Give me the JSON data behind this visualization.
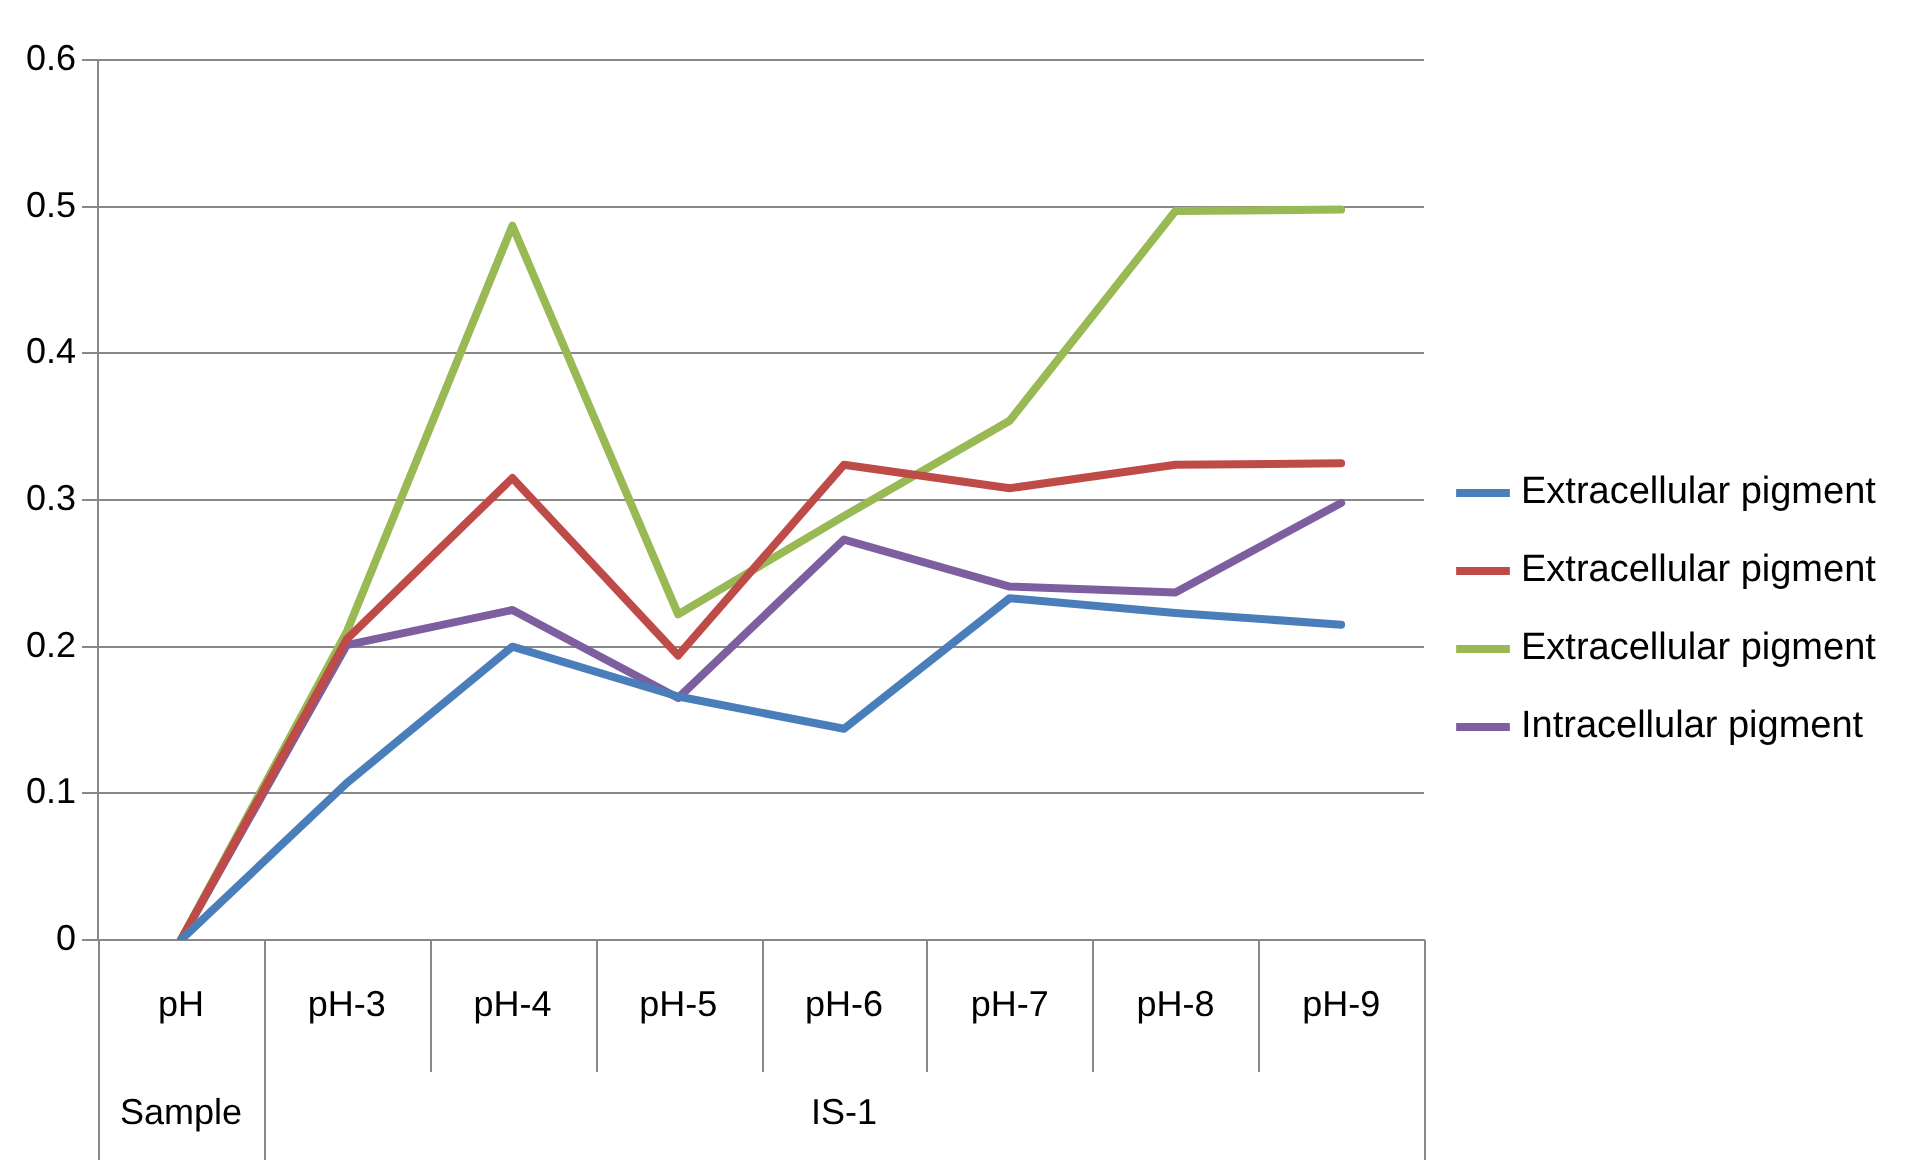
{
  "chart_data": {
    "type": "line",
    "categories": [
      "pH",
      "pH-3",
      "pH-4",
      "pH-5",
      "pH-6",
      "pH-7",
      "pH-8",
      "pH-9"
    ],
    "series": [
      {
        "name": "Extracellular pigment",
        "color": "#4a7ebb",
        "values": [
          0,
          0.107,
          0.2,
          0.166,
          0.144,
          0.233,
          0.223,
          0.215
        ]
      },
      {
        "name": "Extracellular pigment",
        "color": "#be4b48",
        "values": [
          0,
          0.205,
          0.315,
          0.194,
          0.324,
          0.308,
          0.324,
          0.325
        ]
      },
      {
        "name": "Extracellular pigment",
        "color": "#98b954",
        "values": [
          0,
          0.21,
          0.487,
          0.222,
          0.289,
          0.354,
          0.497,
          0.498
        ]
      },
      {
        "name": "Intracellular pigment",
        "color": "#7d5fa0",
        "values": [
          0,
          0.201,
          0.225,
          0.165,
          0.273,
          0.241,
          0.237,
          0.298
        ]
      }
    ],
    "ylim": [
      0,
      0.6
    ],
    "yticks": [
      0,
      0.1,
      0.2,
      0.3,
      0.4,
      0.5,
      0.6
    ],
    "grid": "y",
    "legend": "right",
    "marker": "none",
    "line_style": "solid",
    "annotations": [
      "Sample",
      "IS-1"
    ]
  }
}
